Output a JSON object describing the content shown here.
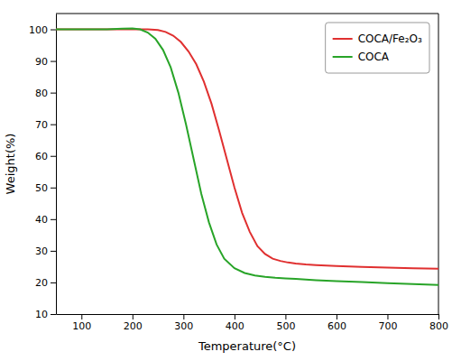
{
  "chart_data": {
    "type": "line",
    "xlabel": "Temperature(°C)",
    "ylabel": "Weight(%)",
    "xlim": [
      50,
      800
    ],
    "ylim": [
      10,
      105
    ],
    "xticks": [
      100,
      200,
      300,
      400,
      500,
      600,
      700,
      800
    ],
    "yticks": [
      10,
      20,
      30,
      40,
      50,
      60,
      70,
      80,
      90,
      100
    ],
    "grid": false,
    "legend": "upper right",
    "series": [
      {
        "name": "COCA/Fe₂O₃",
        "color": "#e03030",
        "x": [
          50,
          100,
          150,
          200,
          230,
          250,
          265,
          280,
          295,
          310,
          325,
          340,
          355,
          370,
          385,
          400,
          415,
          430,
          445,
          460,
          475,
          490,
          505,
          520,
          540,
          560,
          600,
          650,
          700,
          750,
          800
        ],
        "values": [
          100.0,
          100.0,
          100.0,
          100.0,
          100.0,
          99.8,
          99.2,
          98.0,
          96.0,
          93.0,
          89.0,
          83.5,
          76.5,
          68.0,
          59.0,
          50.0,
          42.0,
          36.0,
          31.5,
          29.0,
          27.5,
          26.8,
          26.3,
          26.0,
          25.7,
          25.5,
          25.2,
          24.9,
          24.7,
          24.5,
          24.3
        ]
      },
      {
        "name": "COCA",
        "color": "#28a428",
        "x": [
          50,
          100,
          150,
          180,
          200,
          215,
          230,
          245,
          260,
          275,
          290,
          305,
          320,
          335,
          350,
          365,
          380,
          400,
          420,
          440,
          460,
          480,
          500,
          520,
          540,
          560,
          600,
          650,
          700,
          750,
          800
        ],
        "values": [
          100.0,
          100.0,
          100.0,
          100.2,
          100.3,
          100.0,
          99.0,
          97.0,
          93.5,
          88.0,
          80.0,
          70.0,
          59.0,
          48.0,
          39.0,
          32.0,
          27.5,
          24.5,
          23.0,
          22.2,
          21.8,
          21.5,
          21.3,
          21.1,
          20.9,
          20.7,
          20.4,
          20.1,
          19.8,
          19.5,
          19.2
        ]
      }
    ]
  }
}
